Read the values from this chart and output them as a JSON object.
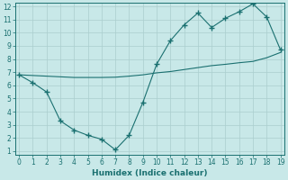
{
  "x": [
    0,
    1,
    2,
    3,
    4,
    5,
    6,
    7,
    8,
    9,
    10,
    11,
    12,
    13,
    14,
    15,
    16,
    17,
    18,
    19
  ],
  "y_curve": [
    6.8,
    6.2,
    5.5,
    3.3,
    2.6,
    2.2,
    1.9,
    1.1,
    2.2,
    4.7,
    7.6,
    9.4,
    10.6,
    11.5,
    10.4,
    11.1,
    11.6,
    12.2,
    11.2,
    8.7
  ],
  "y_line": [
    6.8,
    6.75,
    6.7,
    6.65,
    6.6,
    6.6,
    6.6,
    6.62,
    6.7,
    6.8,
    6.95,
    7.05,
    7.2,
    7.35,
    7.5,
    7.6,
    7.72,
    7.82,
    8.1,
    8.5
  ],
  "xlabel": "Humidex (Indice chaleur)",
  "ylim_min": 1,
  "ylim_max": 12,
  "xlim_min": 0,
  "xlim_max": 19,
  "yticks": [
    1,
    2,
    3,
    4,
    5,
    6,
    7,
    8,
    9,
    10,
    11,
    12
  ],
  "xticks": [
    0,
    1,
    2,
    3,
    4,
    5,
    6,
    7,
    8,
    9,
    10,
    11,
    12,
    13,
    14,
    15,
    16,
    17,
    18,
    19
  ],
  "line_color": "#1a7070",
  "bg_color": "#c8e8e8",
  "grid_color": "#aacece",
  "marker": "+",
  "marker_size": 4,
  "linewidth": 0.8,
  "tick_fontsize": 5.5,
  "xlabel_fontsize": 6.5
}
